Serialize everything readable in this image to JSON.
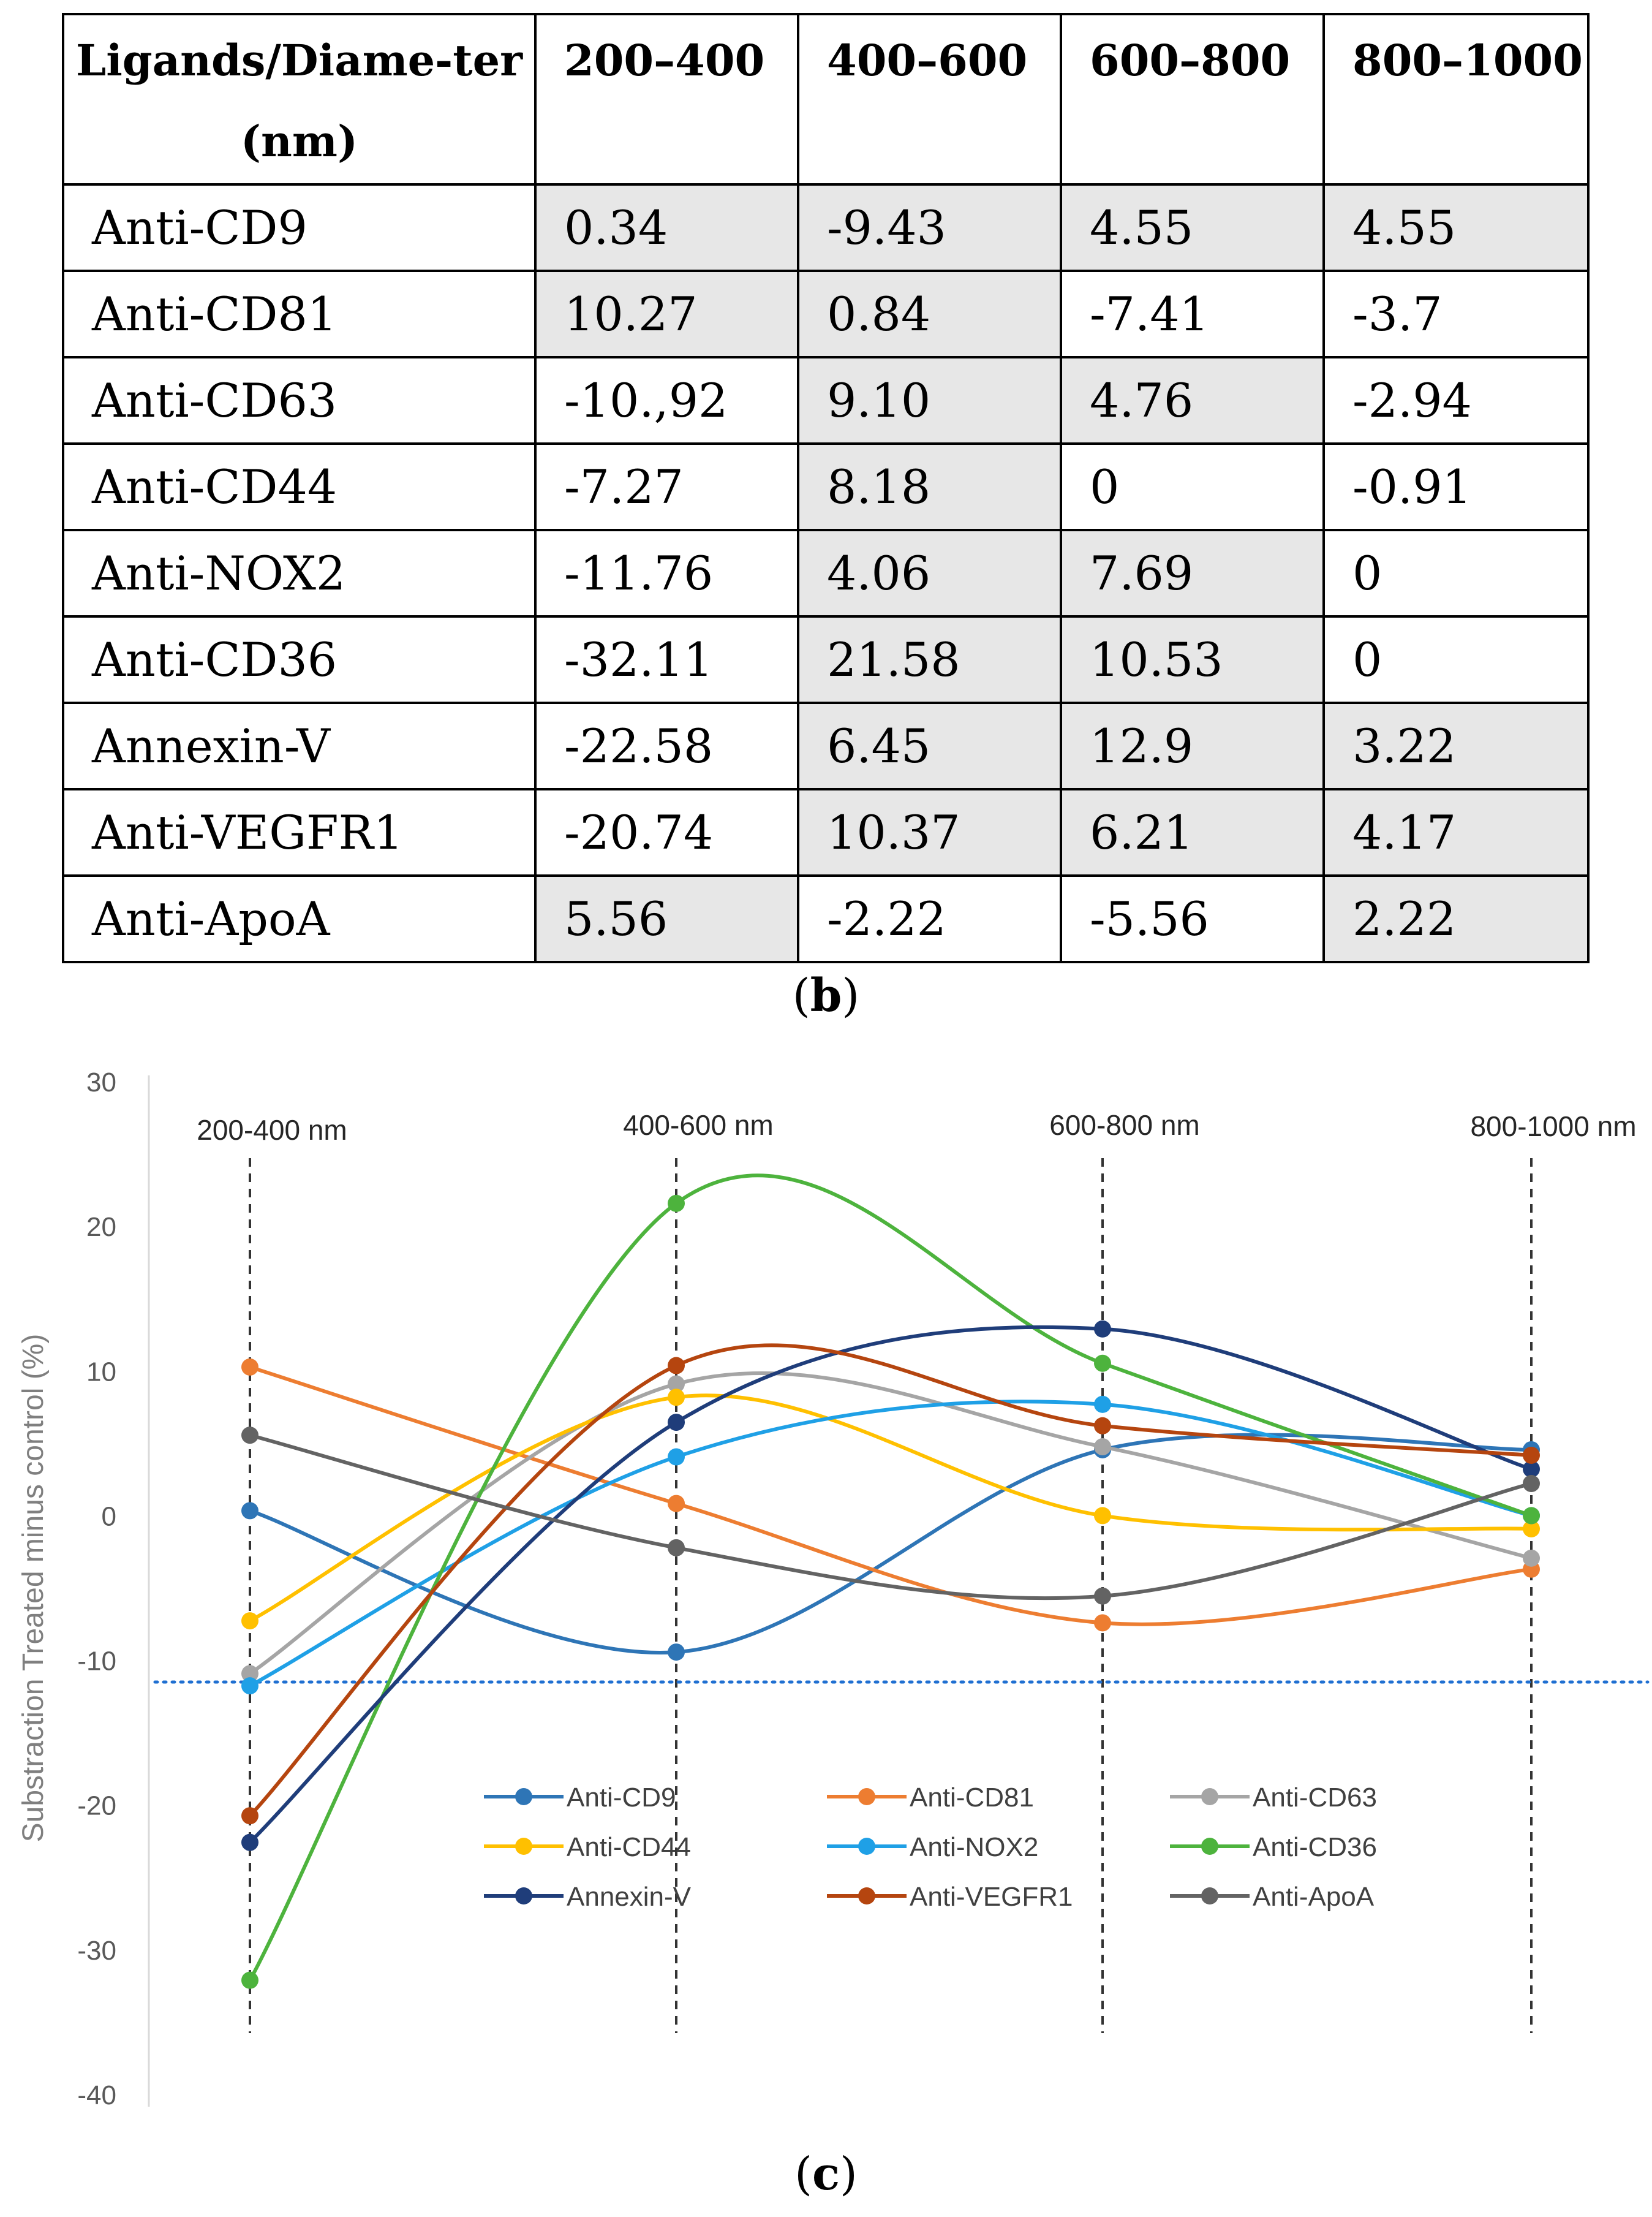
{
  "table": {
    "headers": [
      "Ligands/Diame-ter (nm)",
      "200–400",
      "400–600",
      "600–800",
      "800–1000"
    ],
    "rows": [
      {
        "label": "Anti-CD9",
        "cells": [
          "0.34",
          "-9.43",
          "4.55",
          "4.55"
        ],
        "shaded": [
          true,
          true,
          true,
          true
        ]
      },
      {
        "label": "Anti-CD81",
        "cells": [
          "10.27",
          "0.84",
          "-7.41",
          "-3.7"
        ],
        "shaded": [
          true,
          true,
          false,
          false
        ]
      },
      {
        "label": "Anti-CD63",
        "cells": [
          "-10.,92",
          "9.10",
          "4.76",
          "-2.94"
        ],
        "shaded": [
          false,
          true,
          true,
          false
        ]
      },
      {
        "label": "Anti-CD44",
        "cells": [
          "-7.27",
          "8.18",
          "0",
          "-0.91"
        ],
        "shaded": [
          false,
          true,
          false,
          false
        ]
      },
      {
        "label": "Anti-NOX2",
        "cells": [
          "-11.76",
          "4.06",
          "7.69",
          "0"
        ],
        "shaded": [
          false,
          true,
          true,
          false
        ]
      },
      {
        "label": "Anti-CD36",
        "cells": [
          "-32.11",
          "21.58",
          "10.53",
          "0"
        ],
        "shaded": [
          false,
          true,
          true,
          false
        ]
      },
      {
        "label": "Annexin-V",
        "cells": [
          "-22.58",
          "6.45",
          "12.9",
          "3.22"
        ],
        "shaded": [
          false,
          true,
          true,
          true
        ]
      },
      {
        "label": "Anti-VEGFR1",
        "cells": [
          "-20.74",
          "10.37",
          "6.21",
          "4.17"
        ],
        "shaded": [
          false,
          true,
          true,
          true
        ]
      },
      {
        "label": "Anti-ApoA",
        "cells": [
          "5.56",
          "-2.22",
          "-5.56",
          "2.22"
        ],
        "shaded": [
          true,
          false,
          false,
          true
        ]
      }
    ]
  },
  "caption_b": {
    "open": "(",
    "letter": "b",
    "close": ")"
  },
  "caption_c": {
    "open": "(",
    "letter": "c",
    "close": ")"
  },
  "chart_data": {
    "type": "line",
    "smooth": true,
    "categories": [
      "200-400 nm",
      "400-600 nm",
      "600-800 nm",
      "800-1000 nm"
    ],
    "ylabel": "Substraction Treated minus control (%)",
    "ylim": [
      -40,
      30
    ],
    "yticks": [
      30,
      20,
      10,
      0,
      -10,
      -20,
      -30,
      -40
    ],
    "reference_line": {
      "y": -11.5,
      "style": "dotted",
      "color": "#1f6fd1"
    },
    "category_lines": {
      "style": "dashed",
      "color": "#333333"
    },
    "legend_position": "bottom-center",
    "series": [
      {
        "name": "Anti-CD9",
        "values": [
          0.34,
          -9.43,
          4.55,
          4.55
        ],
        "color": "#2e75b6"
      },
      {
        "name": "Anti-CD81",
        "values": [
          10.27,
          0.84,
          -7.41,
          -3.7
        ],
        "color": "#ed7d31"
      },
      {
        "name": "Anti-CD63",
        "values": [
          -10.92,
          9.1,
          4.76,
          -2.94
        ],
        "color": "#a5a5a5"
      },
      {
        "name": "Anti-CD44",
        "values": [
          -7.27,
          8.18,
          0,
          -0.91
        ],
        "color": "#ffc000"
      },
      {
        "name": "Anti-NOX2",
        "values": [
          -11.76,
          4.06,
          7.69,
          0
        ],
        "color": "#1fa0e6"
      },
      {
        "name": "Anti-CD36",
        "values": [
          -32.11,
          21.58,
          10.53,
          0
        ],
        "color": "#4db33d"
      },
      {
        "name": "Annexin-V",
        "values": [
          -22.58,
          6.45,
          12.9,
          3.22
        ],
        "color": "#1f3d7a"
      },
      {
        "name": "Anti-VEGFR1",
        "values": [
          -20.74,
          10.37,
          6.21,
          4.17
        ],
        "color": "#b5450f"
      },
      {
        "name": "Anti-ApoA",
        "values": [
          5.56,
          -2.22,
          -5.56,
          2.22
        ],
        "color": "#636363"
      }
    ]
  }
}
